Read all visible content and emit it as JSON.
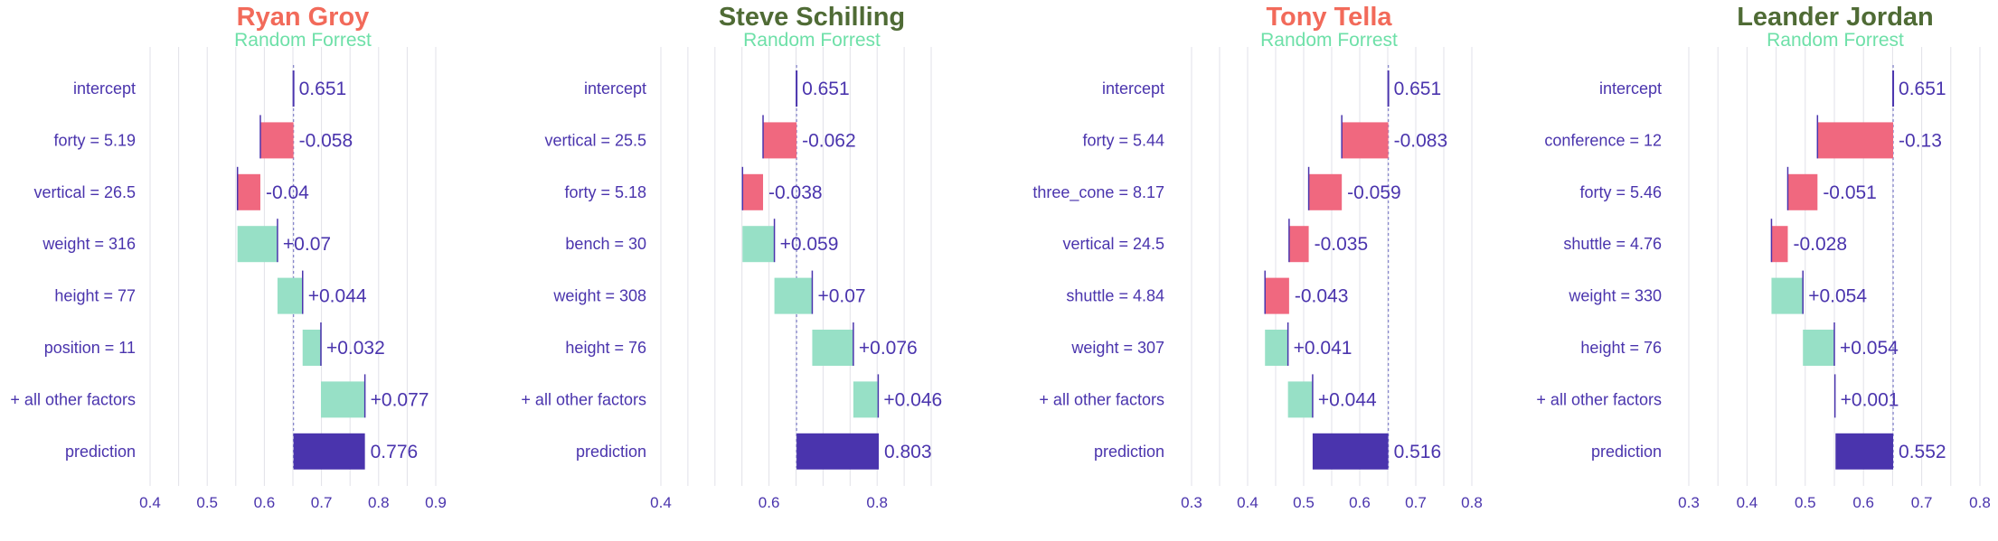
{
  "colors": {
    "negative": "#f0687f",
    "positive": "#97e0c6",
    "base": "#4a34ad",
    "label": "#4a34ad",
    "grid": "#e1e1e8",
    "refline": "#8888cc",
    "title_red": "#f26a5a",
    "title_green": "#4f6b35",
    "subtitle": "#6ee0a8"
  },
  "chart_data": [
    {
      "type": "bar",
      "title": "Ryan Groy",
      "title_color": "red",
      "subtitle": "Random Forrest",
      "xlim": [
        0.4,
        0.9
      ],
      "xticks": [
        "0.4",
        "0.5",
        "0.6",
        "0.7",
        "0.8",
        "0.9"
      ],
      "intercept": 0.651,
      "rows": [
        {
          "label": "intercept",
          "value": 0.651,
          "text": "0.651",
          "kind": "intercept"
        },
        {
          "label": "forty = 5.19",
          "value": -0.058,
          "text": "-0.058",
          "kind": "contrib"
        },
        {
          "label": "vertical = 26.5",
          "value": -0.04,
          "text": "-0.04",
          "kind": "contrib"
        },
        {
          "label": "weight = 316",
          "value": 0.07,
          "text": "+0.07",
          "kind": "contrib"
        },
        {
          "label": "height = 77",
          "value": 0.044,
          "text": "+0.044",
          "kind": "contrib"
        },
        {
          "label": "position = 11",
          "value": 0.032,
          "text": "+0.032",
          "kind": "contrib"
        },
        {
          "label": "+ all other factors",
          "value": 0.077,
          "text": "+0.077",
          "kind": "contrib"
        },
        {
          "label": "prediction",
          "value": 0.776,
          "text": "0.776",
          "kind": "prediction"
        }
      ]
    },
    {
      "type": "bar",
      "title": "Steve Schilling",
      "title_color": "green",
      "subtitle": "Random Forrest",
      "xlim": [
        0.4,
        0.9
      ],
      "xticks": [
        "0.4",
        "0.6",
        "0.8"
      ],
      "intercept": 0.651,
      "rows": [
        {
          "label": "intercept",
          "value": 0.651,
          "text": "0.651",
          "kind": "intercept"
        },
        {
          "label": "vertical = 25.5",
          "value": -0.062,
          "text": "-0.062",
          "kind": "contrib"
        },
        {
          "label": "forty = 5.18",
          "value": -0.038,
          "text": "-0.038",
          "kind": "contrib"
        },
        {
          "label": "bench = 30",
          "value": 0.059,
          "text": "+0.059",
          "kind": "contrib"
        },
        {
          "label": "weight = 308",
          "value": 0.07,
          "text": "+0.07",
          "kind": "contrib"
        },
        {
          "label": "height = 76",
          "value": 0.076,
          "text": "+0.076",
          "kind": "contrib"
        },
        {
          "label": "+ all other factors",
          "value": 0.046,
          "text": "+0.046",
          "kind": "contrib"
        },
        {
          "label": "prediction",
          "value": 0.803,
          "text": "0.803",
          "kind": "prediction"
        }
      ]
    },
    {
      "type": "bar",
      "title": "Tony Tella",
      "title_color": "red",
      "subtitle": "Random Forrest",
      "xlim": [
        0.3,
        0.8
      ],
      "xticks": [
        "0.3",
        "0.4",
        "0.5",
        "0.6",
        "0.7",
        "0.8"
      ],
      "intercept": 0.651,
      "rows": [
        {
          "label": "intercept",
          "value": 0.651,
          "text": "0.651",
          "kind": "intercept"
        },
        {
          "label": "forty = 5.44",
          "value": -0.083,
          "text": "-0.083",
          "kind": "contrib"
        },
        {
          "label": "three_cone = 8.17",
          "value": -0.059,
          "text": "-0.059",
          "kind": "contrib"
        },
        {
          "label": "vertical = 24.5",
          "value": -0.035,
          "text": "-0.035",
          "kind": "contrib"
        },
        {
          "label": "shuttle = 4.84",
          "value": -0.043,
          "text": "-0.043",
          "kind": "contrib"
        },
        {
          "label": "weight = 307",
          "value": 0.041,
          "text": "+0.041",
          "kind": "contrib"
        },
        {
          "label": "+ all other factors",
          "value": 0.044,
          "text": "+0.044",
          "kind": "contrib"
        },
        {
          "label": "prediction",
          "value": 0.516,
          "text": "0.516",
          "kind": "prediction"
        }
      ]
    },
    {
      "type": "bar",
      "title": "Leander Jordan",
      "title_color": "green",
      "subtitle": "Random Forrest",
      "xlim": [
        0.3,
        0.8
      ],
      "xticks": [
        "0.3",
        "0.4",
        "0.5",
        "0.6",
        "0.7",
        "0.8"
      ],
      "intercept": 0.651,
      "rows": [
        {
          "label": "intercept",
          "value": 0.651,
          "text": "0.651",
          "kind": "intercept"
        },
        {
          "label": "conference = 12",
          "value": -0.13,
          "text": "-0.13",
          "kind": "contrib"
        },
        {
          "label": "forty = 5.46",
          "value": -0.051,
          "text": "-0.051",
          "kind": "contrib"
        },
        {
          "label": "shuttle = 4.76",
          "value": -0.028,
          "text": "-0.028",
          "kind": "contrib"
        },
        {
          "label": "weight = 330",
          "value": 0.054,
          "text": "+0.054",
          "kind": "contrib"
        },
        {
          "label": "height = 76",
          "value": 0.054,
          "text": "+0.054",
          "kind": "contrib"
        },
        {
          "label": "+ all other factors",
          "value": 0.001,
          "text": "+0.001",
          "kind": "contrib"
        },
        {
          "label": "prediction",
          "value": 0.552,
          "text": "0.552",
          "kind": "prediction"
        }
      ]
    }
  ]
}
